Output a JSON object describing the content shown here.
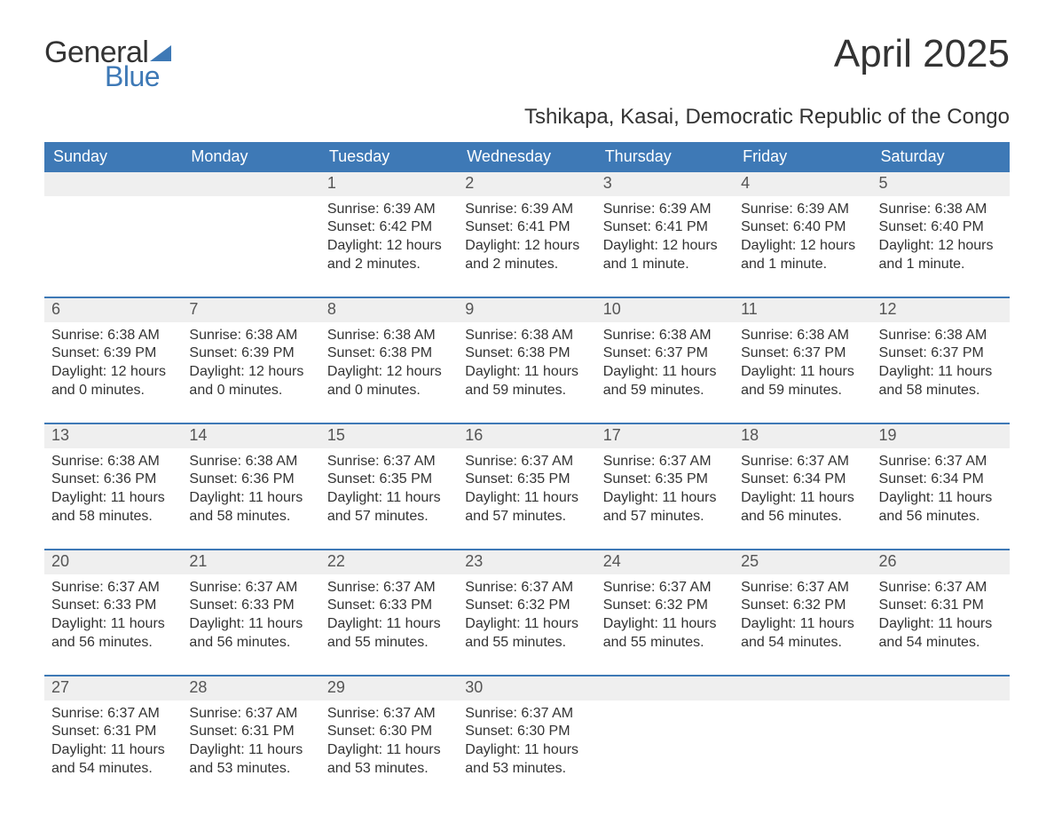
{
  "logo": {
    "word1": "General",
    "word2": "Blue",
    "tri_color": "#3e79b6"
  },
  "title": "April 2025",
  "subtitle": "Tshikapa, Kasai, Democratic Republic of the Congo",
  "colors": {
    "header_bg": "#3e79b6",
    "header_text": "#ffffff",
    "daynum_bg": "#efefef",
    "daynum_text": "#555555",
    "body_text": "#333333",
    "page_bg": "#ffffff"
  },
  "fonts": {
    "title_size_pt": 33,
    "subtitle_size_pt": 18,
    "header_size_pt": 14,
    "daynum_size_pt": 14,
    "body_size_pt": 12
  },
  "day_headers": [
    "Sunday",
    "Monday",
    "Tuesday",
    "Wednesday",
    "Thursday",
    "Friday",
    "Saturday"
  ],
  "weeks": [
    [
      null,
      null,
      {
        "n": "1",
        "sr": "Sunrise: 6:39 AM",
        "ss": "Sunset: 6:42 PM",
        "d1": "Daylight: 12 hours",
        "d2": "and 2 minutes."
      },
      {
        "n": "2",
        "sr": "Sunrise: 6:39 AM",
        "ss": "Sunset: 6:41 PM",
        "d1": "Daylight: 12 hours",
        "d2": "and 2 minutes."
      },
      {
        "n": "3",
        "sr": "Sunrise: 6:39 AM",
        "ss": "Sunset: 6:41 PM",
        "d1": "Daylight: 12 hours",
        "d2": "and 1 minute."
      },
      {
        "n": "4",
        "sr": "Sunrise: 6:39 AM",
        "ss": "Sunset: 6:40 PM",
        "d1": "Daylight: 12 hours",
        "d2": "and 1 minute."
      },
      {
        "n": "5",
        "sr": "Sunrise: 6:38 AM",
        "ss": "Sunset: 6:40 PM",
        "d1": "Daylight: 12 hours",
        "d2": "and 1 minute."
      }
    ],
    [
      {
        "n": "6",
        "sr": "Sunrise: 6:38 AM",
        "ss": "Sunset: 6:39 PM",
        "d1": "Daylight: 12 hours",
        "d2": "and 0 minutes."
      },
      {
        "n": "7",
        "sr": "Sunrise: 6:38 AM",
        "ss": "Sunset: 6:39 PM",
        "d1": "Daylight: 12 hours",
        "d2": "and 0 minutes."
      },
      {
        "n": "8",
        "sr": "Sunrise: 6:38 AM",
        "ss": "Sunset: 6:38 PM",
        "d1": "Daylight: 12 hours",
        "d2": "and 0 minutes."
      },
      {
        "n": "9",
        "sr": "Sunrise: 6:38 AM",
        "ss": "Sunset: 6:38 PM",
        "d1": "Daylight: 11 hours",
        "d2": "and 59 minutes."
      },
      {
        "n": "10",
        "sr": "Sunrise: 6:38 AM",
        "ss": "Sunset: 6:37 PM",
        "d1": "Daylight: 11 hours",
        "d2": "and 59 minutes."
      },
      {
        "n": "11",
        "sr": "Sunrise: 6:38 AM",
        "ss": "Sunset: 6:37 PM",
        "d1": "Daylight: 11 hours",
        "d2": "and 59 minutes."
      },
      {
        "n": "12",
        "sr": "Sunrise: 6:38 AM",
        "ss": "Sunset: 6:37 PM",
        "d1": "Daylight: 11 hours",
        "d2": "and 58 minutes."
      }
    ],
    [
      {
        "n": "13",
        "sr": "Sunrise: 6:38 AM",
        "ss": "Sunset: 6:36 PM",
        "d1": "Daylight: 11 hours",
        "d2": "and 58 minutes."
      },
      {
        "n": "14",
        "sr": "Sunrise: 6:38 AM",
        "ss": "Sunset: 6:36 PM",
        "d1": "Daylight: 11 hours",
        "d2": "and 58 minutes."
      },
      {
        "n": "15",
        "sr": "Sunrise: 6:37 AM",
        "ss": "Sunset: 6:35 PM",
        "d1": "Daylight: 11 hours",
        "d2": "and 57 minutes."
      },
      {
        "n": "16",
        "sr": "Sunrise: 6:37 AM",
        "ss": "Sunset: 6:35 PM",
        "d1": "Daylight: 11 hours",
        "d2": "and 57 minutes."
      },
      {
        "n": "17",
        "sr": "Sunrise: 6:37 AM",
        "ss": "Sunset: 6:35 PM",
        "d1": "Daylight: 11 hours",
        "d2": "and 57 minutes."
      },
      {
        "n": "18",
        "sr": "Sunrise: 6:37 AM",
        "ss": "Sunset: 6:34 PM",
        "d1": "Daylight: 11 hours",
        "d2": "and 56 minutes."
      },
      {
        "n": "19",
        "sr": "Sunrise: 6:37 AM",
        "ss": "Sunset: 6:34 PM",
        "d1": "Daylight: 11 hours",
        "d2": "and 56 minutes."
      }
    ],
    [
      {
        "n": "20",
        "sr": "Sunrise: 6:37 AM",
        "ss": "Sunset: 6:33 PM",
        "d1": "Daylight: 11 hours",
        "d2": "and 56 minutes."
      },
      {
        "n": "21",
        "sr": "Sunrise: 6:37 AM",
        "ss": "Sunset: 6:33 PM",
        "d1": "Daylight: 11 hours",
        "d2": "and 56 minutes."
      },
      {
        "n": "22",
        "sr": "Sunrise: 6:37 AM",
        "ss": "Sunset: 6:33 PM",
        "d1": "Daylight: 11 hours",
        "d2": "and 55 minutes."
      },
      {
        "n": "23",
        "sr": "Sunrise: 6:37 AM",
        "ss": "Sunset: 6:32 PM",
        "d1": "Daylight: 11 hours",
        "d2": "and 55 minutes."
      },
      {
        "n": "24",
        "sr": "Sunrise: 6:37 AM",
        "ss": "Sunset: 6:32 PM",
        "d1": "Daylight: 11 hours",
        "d2": "and 55 minutes."
      },
      {
        "n": "25",
        "sr": "Sunrise: 6:37 AM",
        "ss": "Sunset: 6:32 PM",
        "d1": "Daylight: 11 hours",
        "d2": "and 54 minutes."
      },
      {
        "n": "26",
        "sr": "Sunrise: 6:37 AM",
        "ss": "Sunset: 6:31 PM",
        "d1": "Daylight: 11 hours",
        "d2": "and 54 minutes."
      }
    ],
    [
      {
        "n": "27",
        "sr": "Sunrise: 6:37 AM",
        "ss": "Sunset: 6:31 PM",
        "d1": "Daylight: 11 hours",
        "d2": "and 54 minutes."
      },
      {
        "n": "28",
        "sr": "Sunrise: 6:37 AM",
        "ss": "Sunset: 6:31 PM",
        "d1": "Daylight: 11 hours",
        "d2": "and 53 minutes."
      },
      {
        "n": "29",
        "sr": "Sunrise: 6:37 AM",
        "ss": "Sunset: 6:30 PM",
        "d1": "Daylight: 11 hours",
        "d2": "and 53 minutes."
      },
      {
        "n": "30",
        "sr": "Sunrise: 6:37 AM",
        "ss": "Sunset: 6:30 PM",
        "d1": "Daylight: 11 hours",
        "d2": "and 53 minutes."
      },
      null,
      null,
      null
    ]
  ]
}
